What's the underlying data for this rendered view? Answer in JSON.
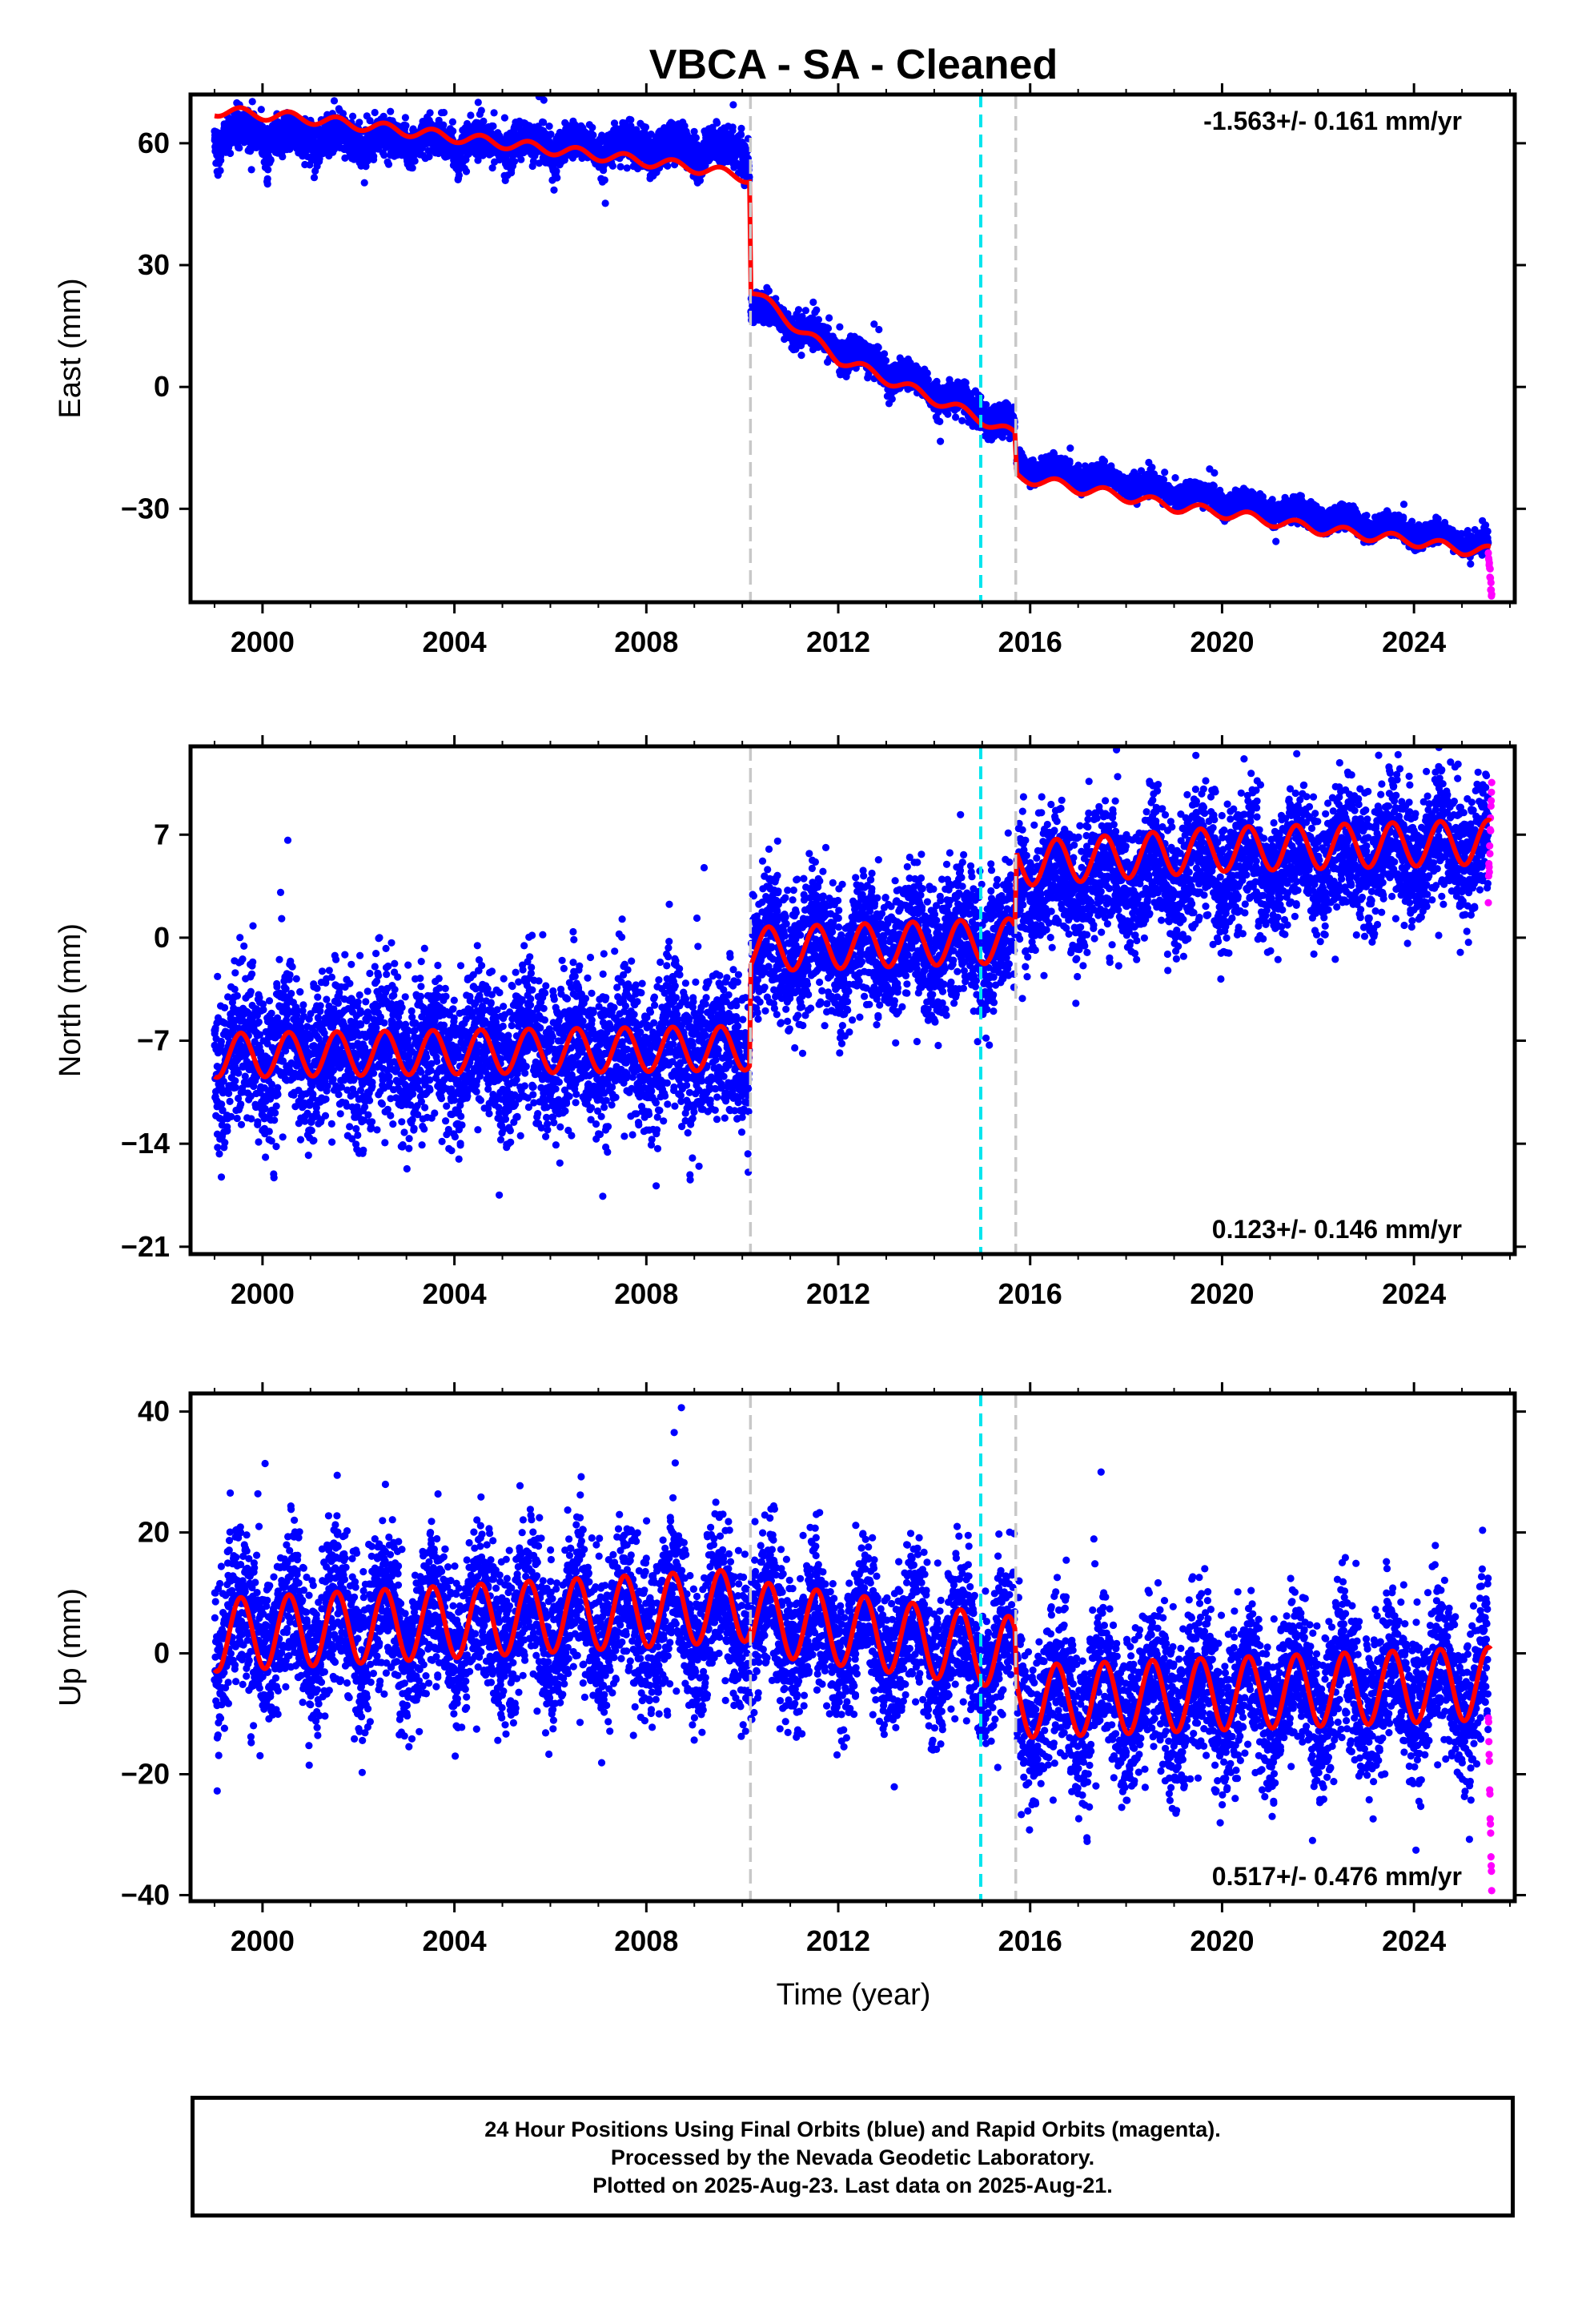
{
  "title": "VBCA  - SA - Cleaned",
  "xlabel": "Time (year)",
  "footer": {
    "line1": "24 Hour Positions Using Final Orbits (blue) and Rapid Orbits (magenta).",
    "line2": "Processed by the Nevada Geodetic Laboratory.",
    "line3": "Plotted on 2025-Aug-23. Last data on 2025-Aug-21."
  },
  "colors": {
    "final": "#0000ff",
    "rapid": "#ff00ff",
    "model": "#ff0000",
    "antenna_change": "#c8c8c8",
    "event": "#00e5ee"
  },
  "chart_data": [
    {
      "type": "scatter",
      "title": "East",
      "ylabel": "East (mm)",
      "xlim": [
        1998.5,
        2026.1
      ],
      "ylim": [
        -53,
        72
      ],
      "xticks": [
        2000,
        2004,
        2008,
        2012,
        2016,
        2020,
        2024
      ],
      "yticks": [
        60,
        30,
        0,
        -30
      ],
      "ytick_labels": [
        "60",
        "30",
        "0",
        "−30"
      ],
      "rate": "-1.563+/- 0.161 mm/yr",
      "rate_position": "top-right",
      "vlines": [
        {
          "x": 2010.17,
          "style": "antenna_change"
        },
        {
          "x": 2014.97,
          "style": "event"
        },
        {
          "x": 2015.7,
          "style": "antenna_change"
        }
      ],
      "model": {
        "x": [
          1999.0,
          2000.0,
          2001.0,
          2002.0,
          2003.0,
          2004.0,
          2005.0,
          2006.0,
          2007.0,
          2008.0,
          2009.0,
          2010.15,
          2010.18,
          2011.0,
          2012.0,
          2013.0,
          2014.0,
          2015.0,
          2015.68,
          2015.72,
          2017.0,
          2018.0,
          2019.0,
          2020.0,
          2021.0,
          2022.0,
          2023.0,
          2024.0,
          2025.0,
          2025.6
        ],
        "y": [
          68,
          67,
          66,
          64.5,
          63,
          61.5,
          60,
          58.5,
          57,
          55.5,
          54,
          51.5,
          24,
          16,
          7,
          2,
          -3,
          -8,
          -12,
          -22,
          -25,
          -27,
          -29.5,
          -31,
          -33,
          -35,
          -36.5,
          -38,
          -40,
          -40.5
        ],
        "seasonal_amp": 1.3
      },
      "series": [
        {
          "name": "final",
          "segments": [
            {
              "x0": 1999.0,
              "x1": 2010.15,
              "y0": 62.5,
              "y1": 58.5,
              "spread": 2.2,
              "dip": 6
            },
            {
              "x0": 2010.18,
              "x1": 2015.68,
              "y0": 20,
              "y1": -10,
              "spread": 1.8,
              "dip": 4
            },
            {
              "x0": 2015.72,
              "x1": 2025.55,
              "y0": -19,
              "y1": -39,
              "spread": 1.3,
              "dip": 1.5
            }
          ]
        },
        {
          "name": "rapid",
          "x0": 2025.55,
          "x1": 2025.62,
          "y0": -41,
          "y1": -51
        }
      ]
    },
    {
      "type": "scatter",
      "title": "North",
      "ylabel": "North (mm)",
      "xlim": [
        1998.5,
        2026.1
      ],
      "ylim": [
        -21.5,
        13
      ],
      "xticks": [
        2000,
        2004,
        2008,
        2012,
        2016,
        2020,
        2024
      ],
      "yticks": [
        7,
        0,
        -7,
        -14,
        -21
      ],
      "ytick_labels": [
        "7",
        "0",
        "−7",
        "−14",
        "−21"
      ],
      "rate": "0.123+/- 0.146 mm/yr",
      "rate_position": "bottom-right",
      "vlines": [
        {
          "x": 2010.17,
          "style": "antenna_change"
        },
        {
          "x": 2014.97,
          "style": "event"
        },
        {
          "x": 2015.7,
          "style": "antenna_change"
        }
      ],
      "model": {
        "x": [
          1999.0,
          2010.15,
          2010.18,
          2015.68,
          2015.72,
          2020.0,
          2025.6
        ],
        "y": [
          -8,
          -7.5,
          -0.8,
          -0.2,
          5,
          6,
          6.5
        ],
        "seasonal_amp": 1.5
      },
      "series": [
        {
          "name": "final",
          "segments": [
            {
              "x0": 1999.0,
              "x1": 2010.15,
              "y0": -7.8,
              "y1": -7.5,
              "spread": 2.6,
              "dip": 0
            },
            {
              "x0": 2010.18,
              "x1": 2015.68,
              "y0": -1,
              "y1": 0,
              "spread": 2.3,
              "dip": 0
            },
            {
              "x0": 2015.72,
              "x1": 2025.55,
              "y0": 3.5,
              "y1": 6.5,
              "spread": 2.2,
              "dip": 0
            }
          ]
        },
        {
          "name": "rapid",
          "x0": 2025.55,
          "x1": 2025.62,
          "y0": 3,
          "y1": 10
        }
      ]
    },
    {
      "type": "scatter",
      "title": "Up",
      "ylabel": "Up (mm)",
      "xlim": [
        1998.5,
        2026.1
      ],
      "ylim": [
        -41,
        43
      ],
      "xticks": [
        2000,
        2004,
        2008,
        2012,
        2016,
        2020,
        2024
      ],
      "yticks": [
        40,
        20,
        0,
        -20,
        -40
      ],
      "ytick_labels": [
        "40",
        "20",
        "0",
        "−20",
        "−40"
      ],
      "rate": "0.517+/- 0.476 mm/yr",
      "rate_position": "bottom-right",
      "vlines": [
        {
          "x": 2010.17,
          "style": "antenna_change"
        },
        {
          "x": 2014.97,
          "style": "event"
        },
        {
          "x": 2015.7,
          "style": "antenna_change"
        }
      ],
      "model": {
        "x": [
          1999.0,
          2010.15,
          2010.18,
          2015.68,
          2015.72,
          2025.6
        ],
        "y": [
          3,
          8,
          6,
          0,
          -8,
          -5
        ],
        "seasonal_amp": 6
      },
      "series": [
        {
          "name": "final",
          "segments": [
            {
              "x0": 1999.0,
              "x1": 2010.15,
              "y0": 4,
              "y1": 6,
              "spread": 6.5,
              "dip": 0
            },
            {
              "x0": 2010.18,
              "x1": 2015.68,
              "y0": 5,
              "y1": 0,
              "spread": 6,
              "dip": 0
            },
            {
              "x0": 2015.72,
              "x1": 2025.55,
              "y0": -8,
              "y1": -5,
              "spread": 6.5,
              "dip": 0
            }
          ]
        },
        {
          "name": "rapid",
          "x0": 2025.55,
          "x1": 2025.62,
          "y0": -10,
          "y1": -39
        }
      ]
    }
  ]
}
